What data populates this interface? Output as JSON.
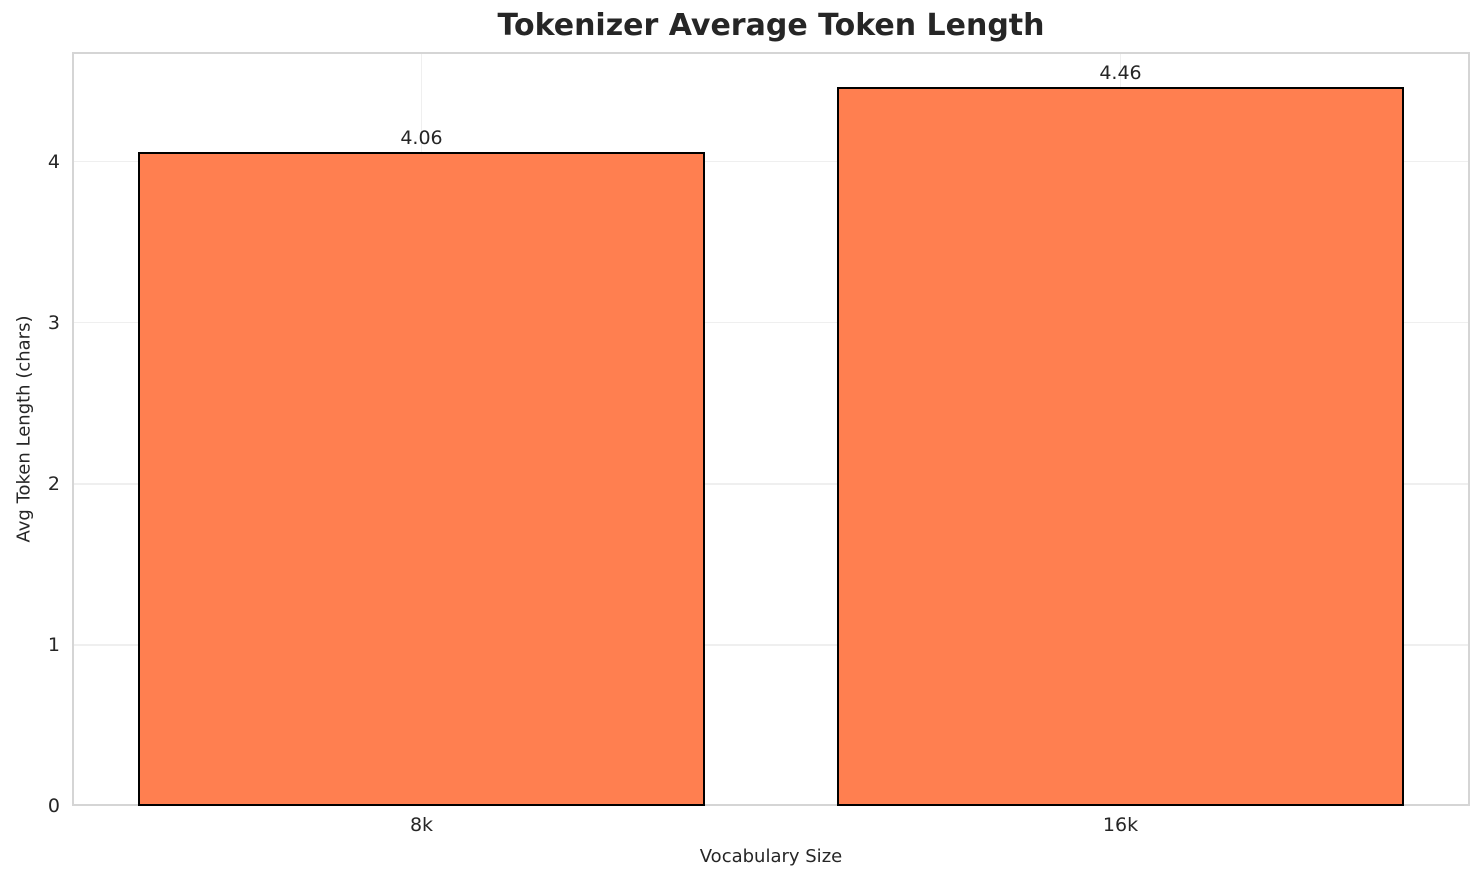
{
  "chart_data": {
    "type": "bar",
    "title": "Tokenizer Average Token Length",
    "xlabel": "Vocabulary Size",
    "ylabel": "Avg Token Length (chars)",
    "categories": [
      "8k",
      "16k"
    ],
    "values": [
      4.06,
      4.46
    ],
    "value_labels": [
      "4.06",
      "4.46"
    ],
    "yticks": [
      0,
      1,
      2,
      3,
      4
    ],
    "ylim": [
      0,
      4.68
    ],
    "grid": true,
    "legend_position": "none",
    "bar_color": "#FF7F50",
    "bar_edge_color": "#000000",
    "text_color": "#262626",
    "grid_color": "#efefef",
    "spine_color": "#d5d5d5",
    "bar_width_fraction": 0.81
  }
}
